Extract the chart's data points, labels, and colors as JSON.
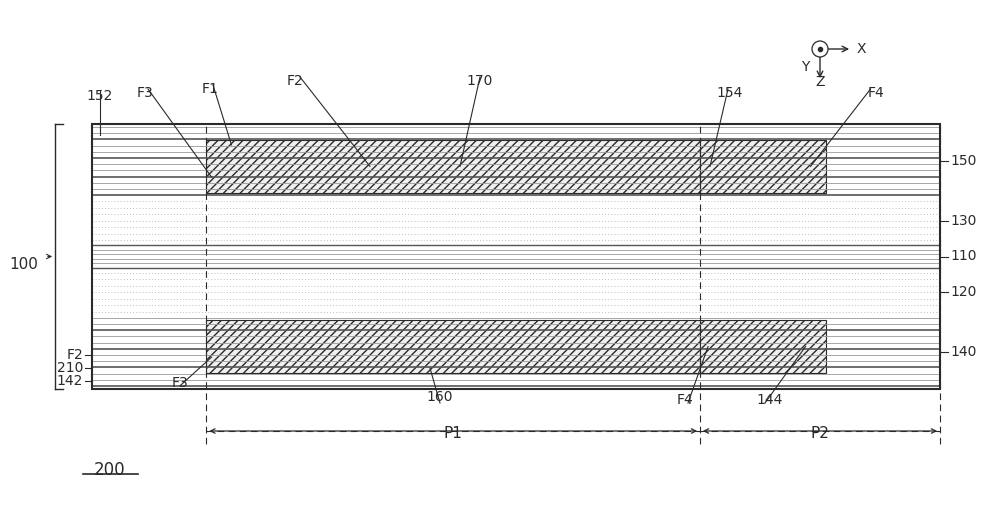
{
  "bg_color": "#ffffff",
  "line_color": "#2a2a2a",
  "fig_width": 10.0,
  "fig_height": 5.09,
  "label_200": "200",
  "label_100": "100",
  "label_142": "142",
  "label_210": "210",
  "label_F2_top": "F2",
  "label_F3_top": "F3",
  "label_160": "160",
  "label_P1": "P1",
  "label_P2": "P2",
  "label_140": "140",
  "label_144": "144",
  "label_F4_top": "F4",
  "label_120": "120",
  "label_110": "110",
  "label_130": "130",
  "label_150": "150",
  "label_152": "152",
  "label_F3_bot": "F3",
  "label_F1": "F1",
  "label_F2_bot": "F2",
  "label_170": "170",
  "label_154": "154",
  "label_F4_bot": "F4"
}
